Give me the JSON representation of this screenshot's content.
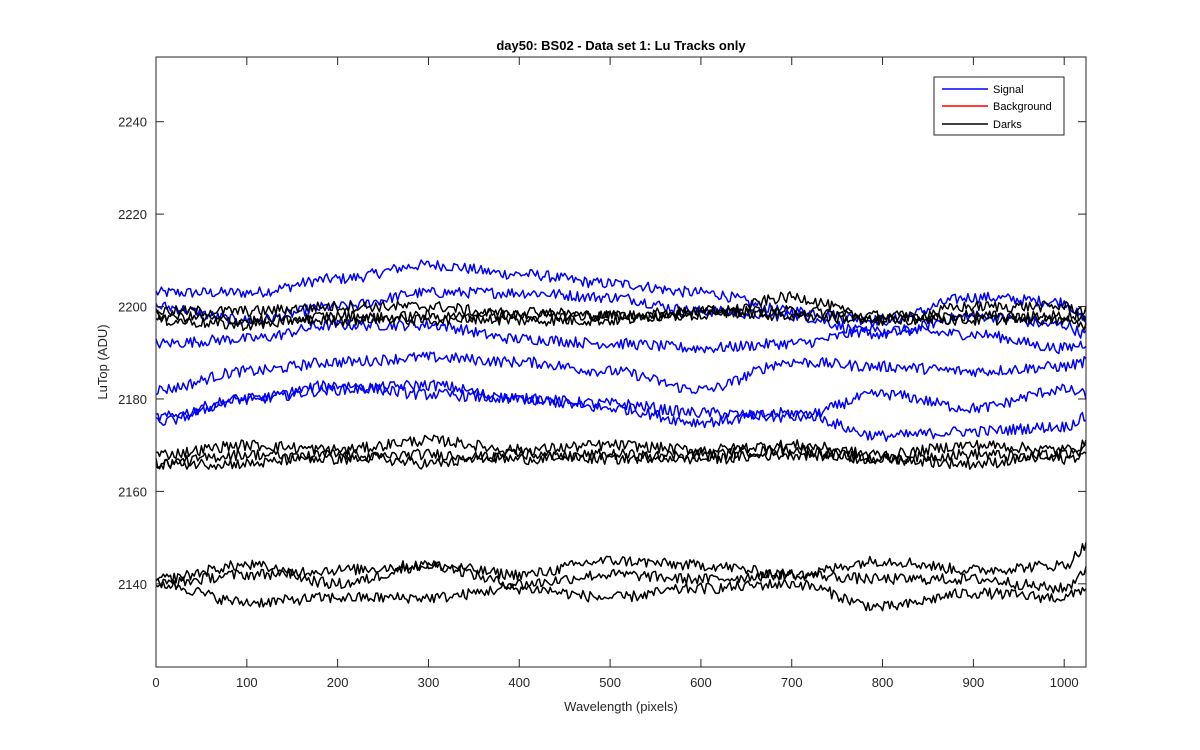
{
  "chart_data": {
    "type": "line",
    "title": "day50: BS02 - Data set 1: Lu Tracks only",
    "xlabel": "Wavelength (pixels)",
    "ylabel": "LuTop (ADU)",
    "xlim": [
      0,
      1024
    ],
    "ylim": [
      2122,
      2254
    ],
    "xticks": [
      0,
      100,
      200,
      300,
      400,
      500,
      600,
      700,
      800,
      900,
      1000
    ],
    "yticks": [
      2140,
      2160,
      2180,
      2200,
      2220,
      2240
    ],
    "grid": false,
    "legend": {
      "position": "top-right",
      "entries": [
        {
          "label": "Signal",
          "color": "#0000ff"
        },
        {
          "label": "Background",
          "color": "#ff0000"
        },
        {
          "label": "Darks",
          "color": "#000000"
        }
      ]
    },
    "series": [
      {
        "name": "Signal",
        "color": "#0000ff",
        "x": [
          0,
          100,
          200,
          300,
          400,
          500,
          600,
          700,
          800,
          900,
          1000,
          1024
        ],
        "y": [
          2203,
          2203,
          2206,
          2209,
          2207,
          2205,
          2203,
          2199,
          2197,
          2202,
          2201,
          2197
        ]
      },
      {
        "name": "Signal",
        "color": "#0000ff",
        "x": [
          0,
          100,
          200,
          300,
          400,
          500,
          600,
          700,
          800,
          900,
          1000,
          1024
        ],
        "y": [
          2200,
          2197,
          2200,
          2203,
          2203,
          2202,
          2199,
          2198,
          2194,
          2198,
          2196,
          2194
        ]
      },
      {
        "name": "Signal",
        "color": "#0000ff",
        "x": [
          0,
          100,
          200,
          300,
          400,
          500,
          600,
          700,
          800,
          900,
          1000,
          1024
        ],
        "y": [
          2192,
          2193,
          2196,
          2196,
          2193,
          2192,
          2191,
          2192,
          2195,
          2194,
          2191,
          2192
        ]
      },
      {
        "name": "Signal",
        "color": "#0000ff",
        "x": [
          0,
          100,
          200,
          300,
          400,
          500,
          600,
          700,
          800,
          900,
          1000,
          1024
        ],
        "y": [
          2182,
          2186,
          2188,
          2189,
          2188,
          2186,
          2182,
          2188,
          2187,
          2186,
          2187,
          2188
        ]
      },
      {
        "name": "Signal",
        "color": "#0000ff",
        "x": [
          0,
          100,
          200,
          300,
          400,
          500,
          600,
          700,
          800,
          900,
          1000,
          1024
        ],
        "y": [
          2176,
          2180,
          2182,
          2183,
          2180,
          2179,
          2177,
          2176,
          2181,
          2178,
          2182,
          2181
        ]
      },
      {
        "name": "Signal",
        "color": "#0000ff",
        "x": [
          0,
          100,
          200,
          300,
          400,
          500,
          600,
          700,
          800,
          900,
          1000,
          1024
        ],
        "y": [
          2175,
          2180,
          2183,
          2181,
          2180,
          2178,
          2175,
          2177,
          2172,
          2173,
          2174,
          2176
        ]
      },
      {
        "name": "Darks",
        "color": "#000000",
        "x": [
          0,
          100,
          200,
          300,
          400,
          500,
          600,
          700,
          800,
          900,
          1000,
          1024
        ],
        "y": [
          2199,
          2199,
          2200,
          2200,
          2198,
          2198,
          2198,
          2202,
          2197,
          2200,
          2200,
          2199
        ]
      },
      {
        "name": "Darks",
        "color": "#000000",
        "x": [
          0,
          100,
          200,
          300,
          400,
          500,
          600,
          700,
          800,
          900,
          1000,
          1024
        ],
        "y": [
          2198,
          2197,
          2197,
          2198,
          2197,
          2197,
          2199,
          2199,
          2198,
          2197,
          2198,
          2198
        ]
      },
      {
        "name": "Darks",
        "color": "#000000",
        "x": [
          0,
          100,
          200,
          300,
          400,
          500,
          600,
          700,
          800,
          900,
          1000,
          1024
        ],
        "y": [
          2197,
          2196,
          2198,
          2197,
          2199,
          2198,
          2199,
          2198,
          2197,
          2198,
          2197,
          2196
        ]
      },
      {
        "name": "Darks",
        "color": "#000000",
        "x": [
          0,
          100,
          200,
          300,
          400,
          500,
          600,
          700,
          800,
          900,
          1000,
          1024
        ],
        "y": [
          2168,
          2170,
          2169,
          2171,
          2169,
          2170,
          2169,
          2170,
          2168,
          2170,
          2169,
          2170
        ]
      },
      {
        "name": "Darks",
        "color": "#000000",
        "x": [
          0,
          100,
          200,
          300,
          400,
          500,
          600,
          700,
          800,
          900,
          1000,
          1024
        ],
        "y": [
          2166,
          2168,
          2167,
          2168,
          2167,
          2168,
          2167,
          2168,
          2167,
          2168,
          2167,
          2168
        ]
      },
      {
        "name": "Darks",
        "color": "#000000",
        "x": [
          0,
          100,
          200,
          300,
          400,
          500,
          600,
          700,
          800,
          900,
          1000,
          1024
        ],
        "y": [
          2166,
          2166,
          2168,
          2166,
          2168,
          2167,
          2168,
          2169,
          2167,
          2166,
          2168,
          2169
        ]
      },
      {
        "name": "Darks",
        "color": "#000000",
        "x": [
          0,
          100,
          200,
          300,
          400,
          500,
          600,
          700,
          800,
          900,
          1000,
          1024
        ],
        "y": [
          2141,
          2144,
          2140,
          2144,
          2142,
          2145,
          2144,
          2142,
          2145,
          2143,
          2144,
          2148
        ]
      },
      {
        "name": "Darks",
        "color": "#000000",
        "x": [
          0,
          100,
          200,
          300,
          400,
          500,
          600,
          700,
          800,
          900,
          1000,
          1024
        ],
        "y": [
          2140,
          2142,
          2143,
          2144,
          2140,
          2142,
          2141,
          2142,
          2141,
          2141,
          2139,
          2143
        ]
      },
      {
        "name": "Darks",
        "color": "#000000",
        "x": [
          0,
          100,
          200,
          300,
          400,
          500,
          600,
          700,
          800,
          900,
          1000,
          1024
        ],
        "y": [
          2140,
          2136,
          2137,
          2137,
          2139,
          2137,
          2139,
          2140,
          2135,
          2138,
          2137,
          2139
        ]
      }
    ]
  }
}
